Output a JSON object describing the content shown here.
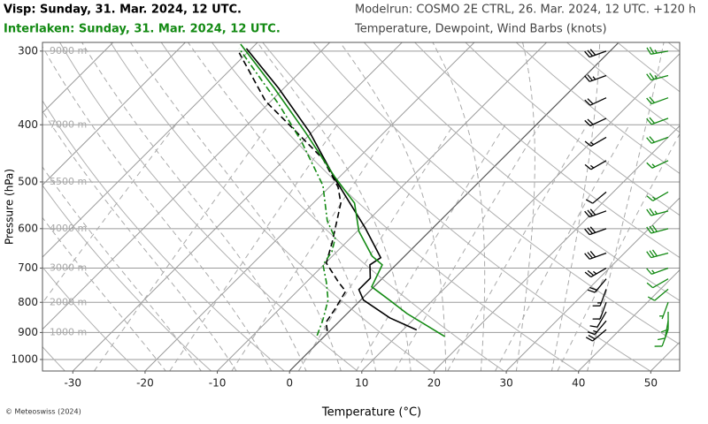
{
  "chart_data": {
    "type": "skewt",
    "model_run": "Modelrun: COSMO 2E CTRL, 26. Mar. 2024, 12 UTC. +120 h",
    "subtitle": "Temperature, Dewpoint, Wind Barbs (knots)",
    "xlabel": "Temperature (°C)",
    "ylabel": "Pressure (hPa)",
    "credit": "© Meteoswiss (2024)",
    "xlim": [
      -34.2,
      54
    ],
    "xticks": [
      -30,
      -20,
      -10,
      0,
      10,
      20,
      30,
      40,
      50
    ],
    "ylim": [
      1046,
      290
    ],
    "yticks": [
      300,
      400,
      500,
      600,
      700,
      800,
      900,
      1000
    ],
    "log_scale": true,
    "grid": true,
    "height_labels": [
      {
        "pressure": 300,
        "label": "9000 m"
      },
      {
        "pressure": 400,
        "label": "7000 m"
      },
      {
        "pressure": 500,
        "label": "5500 m"
      },
      {
        "pressure": 600,
        "label": "4000 m"
      },
      {
        "pressure": 700,
        "label": "3000 m"
      },
      {
        "pressure": 800,
        "label": "2000 m"
      },
      {
        "pressure": 900,
        "label": "1000 m"
      }
    ],
    "series": [
      {
        "name": "Visp: Sunday, 31. Mar. 2024, 12 UTC.",
        "color": "#000000",
        "dewpoint_style": "dashed",
        "temperature": {
          "pressure": [
            891,
            850,
            793,
            761,
            728,
            691,
            672,
            598,
            498,
            412,
            347,
            297
          ],
          "values": [
            11.9,
            6.5,
            0.4,
            -1.7,
            -1.7,
            -3.6,
            -3.1,
            -9.4,
            -19.9,
            -30.3,
            -40.7,
            -50.7
          ]
        },
        "dewpoint": {
          "pressure": [
            895,
            865,
            821,
            766,
            740,
            686,
            634,
            543,
            510,
            457,
            405,
            365,
            302
          ],
          "values": [
            -0.3,
            -1.7,
            -2.3,
            -3.3,
            -5.5,
            -9.9,
            -11.9,
            -16.2,
            -18.8,
            -24.8,
            -33.3,
            -40.7,
            -51.1
          ]
        },
        "wind": {
          "pressure": [
            300,
            330,
            360,
            390,
            420,
            460,
            520,
            560,
            600,
            660,
            700,
            730,
            760,
            800,
            830,
            860,
            890
          ],
          "speed": [
            30,
            25,
            20,
            20,
            15,
            15,
            10,
            30,
            30,
            30,
            25,
            20,
            15,
            10,
            10,
            15,
            20
          ],
          "direction": [
            250,
            250,
            245,
            245,
            240,
            240,
            230,
            250,
            250,
            250,
            240,
            220,
            200,
            200,
            210,
            220,
            230
          ]
        }
      },
      {
        "name": "Interlaken: Sunday, 31. Mar. 2024, 12 UTC.",
        "color": "#138a13",
        "dewpoint_style": "dashdot",
        "temperature": {
          "pressure": [
            914,
            836,
            793,
            753,
            691,
            668,
            606,
            543,
            490,
            412,
            347,
            292
          ],
          "values": [
            16.7,
            8.3,
            4.0,
            -0.3,
            -1.9,
            -4.5,
            -9.8,
            -14.3,
            -20.7,
            -30.9,
            -41.3,
            -52.1
          ]
        },
        "dewpoint": {
          "pressure": [
            911,
            856,
            793,
            740,
            691,
            656,
            623,
            582,
            507,
            426,
            371,
            297
          ],
          "values": [
            -1.1,
            -2.5,
            -4.5,
            -7.2,
            -10.1,
            -10.7,
            -12.1,
            -15.6,
            -21.1,
            -30.3,
            -38.2,
            -51.7
          ]
        },
        "wind": {
          "pressure": [
            300,
            330,
            360,
            390,
            420,
            460,
            520,
            560,
            600,
            660,
            700,
            730,
            760,
            800,
            830,
            860,
            890
          ],
          "speed": [
            25,
            25,
            20,
            20,
            20,
            15,
            15,
            25,
            30,
            30,
            15,
            10,
            10,
            5,
            10,
            10,
            10
          ],
          "direction": [
            260,
            255,
            250,
            250,
            250,
            245,
            240,
            255,
            255,
            255,
            250,
            240,
            230,
            200,
            180,
            190,
            200
          ]
        }
      }
    ]
  }
}
